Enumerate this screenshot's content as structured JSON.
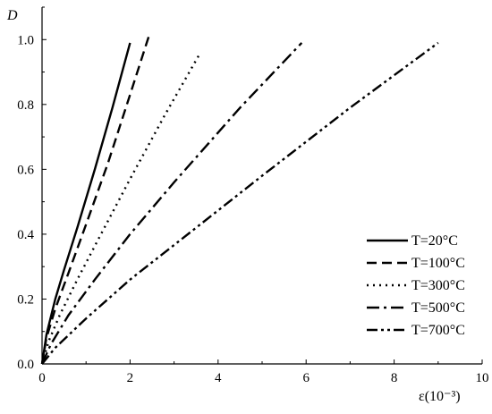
{
  "chart_data": {
    "type": "line",
    "xlabel": "ε(10⁻³)",
    "ylabel": "D",
    "xlim": [
      0,
      10
    ],
    "ylim": [
      0,
      1.1
    ],
    "x_ticks": [
      "0",
      "2",
      "4",
      "6",
      "8",
      "10"
    ],
    "y_ticks": [
      "0.0",
      "0.2",
      "0.4",
      "0.6",
      "0.8",
      "1.0"
    ],
    "grid": false,
    "legend_position": "bottom-right",
    "series": [
      {
        "name": "T=20°C",
        "dash": "solid",
        "x": [
          0,
          0.1,
          0.3,
          0.5,
          0.8,
          1.2,
          1.6,
          2.0
        ],
        "y": [
          0,
          0.09,
          0.2,
          0.29,
          0.42,
          0.6,
          0.79,
          0.99
        ]
      },
      {
        "name": "T=100°C",
        "dash": "dashed",
        "x": [
          0,
          0.1,
          0.3,
          0.6,
          1.0,
          1.5,
          2.0,
          2.45
        ],
        "y": [
          0,
          0.08,
          0.17,
          0.28,
          0.43,
          0.62,
          0.83,
          1.02
        ]
      },
      {
        "name": "T=300°C",
        "dash": "dotted",
        "x": [
          0,
          0.15,
          0.4,
          0.8,
          1.3,
          2.0,
          2.8,
          3.6
        ],
        "y": [
          0,
          0.07,
          0.15,
          0.26,
          0.39,
          0.57,
          0.77,
          0.96
        ]
      },
      {
        "name": "T=500°C",
        "dash": "dashdot",
        "x": [
          0,
          0.2,
          0.6,
          1.2,
          2.0,
          3.0,
          4.5,
          5.9
        ],
        "y": [
          0,
          0.06,
          0.15,
          0.26,
          0.4,
          0.56,
          0.79,
          0.99
        ]
      },
      {
        "name": "T=700°C",
        "dash": "dashdotdot",
        "x": [
          0,
          0.3,
          1.0,
          2.0,
          3.5,
          5.0,
          7.0,
          9.0
        ],
        "y": [
          0,
          0.05,
          0.14,
          0.26,
          0.42,
          0.58,
          0.79,
          0.99
        ]
      }
    ]
  }
}
